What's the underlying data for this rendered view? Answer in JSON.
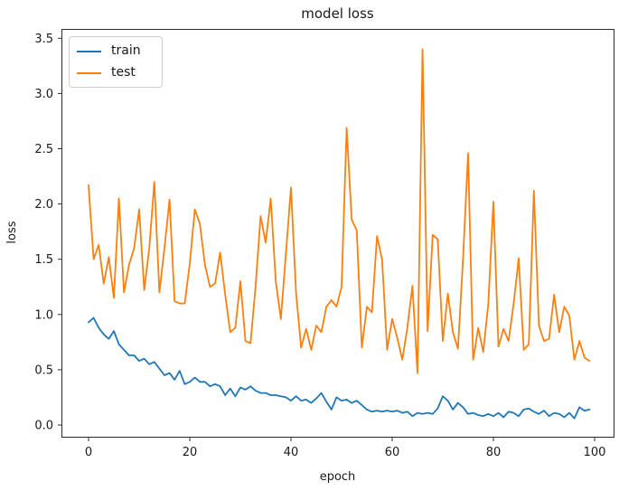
{
  "figure": {
    "background": "#ffffff",
    "axis_color": "#2b2b2b",
    "text_color": "#1a1a1a"
  },
  "chart_data": {
    "type": "line",
    "title": "model loss",
    "xlabel": "epoch",
    "ylabel": "loss",
    "grid": false,
    "legend_position": "upper left",
    "xlim": [
      -5.4,
      103.8
    ],
    "ylim": [
      -0.11,
      3.58
    ],
    "x_ticks": [
      0,
      20,
      40,
      60,
      80,
      100
    ],
    "y_ticks": [
      0.0,
      0.5,
      1.0,
      1.5,
      2.0,
      2.5,
      3.0,
      3.5
    ],
    "y_tick_labels": [
      "0.0",
      "0.5",
      "1.0",
      "1.5",
      "2.0",
      "2.5",
      "3.0",
      "3.5"
    ],
    "x": [
      0,
      1,
      2,
      3,
      4,
      5,
      6,
      7,
      8,
      9,
      10,
      11,
      12,
      13,
      14,
      15,
      16,
      17,
      18,
      19,
      20,
      21,
      22,
      23,
      24,
      25,
      26,
      27,
      28,
      29,
      30,
      31,
      32,
      33,
      34,
      35,
      36,
      37,
      38,
      39,
      40,
      41,
      42,
      43,
      44,
      45,
      46,
      47,
      48,
      49,
      50,
      51,
      52,
      53,
      54,
      55,
      56,
      57,
      58,
      59,
      60,
      61,
      62,
      63,
      64,
      65,
      66,
      67,
      68,
      69,
      70,
      71,
      72,
      73,
      74,
      75,
      76,
      77,
      78,
      79,
      80,
      81,
      82,
      83,
      84,
      85,
      86,
      87,
      88,
      89,
      90,
      91,
      92,
      93,
      94,
      95,
      96,
      97,
      98,
      99
    ],
    "series": [
      {
        "name": "train",
        "color": "#1f77b4",
        "values": [
          0.93,
          0.97,
          0.88,
          0.82,
          0.78,
          0.85,
          0.73,
          0.68,
          0.63,
          0.63,
          0.58,
          0.6,
          0.55,
          0.57,
          0.51,
          0.45,
          0.47,
          0.41,
          0.49,
          0.37,
          0.39,
          0.43,
          0.39,
          0.39,
          0.35,
          0.37,
          0.35,
          0.27,
          0.33,
          0.26,
          0.34,
          0.32,
          0.35,
          0.31,
          0.29,
          0.29,
          0.27,
          0.27,
          0.26,
          0.25,
          0.22,
          0.26,
          0.22,
          0.23,
          0.2,
          0.24,
          0.29,
          0.21,
          0.14,
          0.25,
          0.22,
          0.23,
          0.2,
          0.22,
          0.18,
          0.14,
          0.12,
          0.13,
          0.12,
          0.13,
          0.12,
          0.13,
          0.11,
          0.12,
          0.08,
          0.11,
          0.1,
          0.11,
          0.1,
          0.15,
          0.26,
          0.22,
          0.14,
          0.2,
          0.16,
          0.1,
          0.11,
          0.09,
          0.08,
          0.1,
          0.08,
          0.11,
          0.07,
          0.12,
          0.11,
          0.08,
          0.14,
          0.15,
          0.12,
          0.1,
          0.13,
          0.08,
          0.11,
          0.1,
          0.07,
          0.11,
          0.06,
          0.16,
          0.13,
          0.14
        ]
      },
      {
        "name": "test",
        "color": "#ff7f0e",
        "values": [
          2.17,
          1.5,
          1.63,
          1.28,
          1.52,
          1.15,
          2.05,
          1.2,
          1.45,
          1.6,
          1.95,
          1.22,
          1.6,
          2.2,
          1.2,
          1.6,
          2.04,
          1.12,
          1.1,
          1.1,
          1.46,
          1.95,
          1.82,
          1.45,
          1.25,
          1.28,
          1.56,
          1.18,
          0.84,
          0.88,
          1.3,
          0.76,
          0.74,
          1.25,
          1.89,
          1.65,
          2.05,
          1.3,
          0.96,
          1.55,
          2.15,
          1.2,
          0.7,
          0.87,
          0.68,
          0.9,
          0.84,
          1.07,
          1.13,
          1.07,
          1.25,
          2.69,
          1.86,
          1.76,
          0.7,
          1.07,
          1.02,
          1.71,
          1.5,
          0.68,
          0.96,
          0.79,
          0.59,
          0.88,
          1.26,
          0.47,
          3.4,
          0.85,
          1.72,
          1.68,
          0.76,
          1.19,
          0.84,
          0.69,
          1.5,
          2.46,
          0.59,
          0.88,
          0.66,
          1.1,
          2.02,
          0.71,
          0.87,
          0.76,
          1.1,
          1.51,
          0.68,
          0.73,
          2.12,
          0.9,
          0.76,
          0.78,
          1.18,
          0.84,
          1.07,
          0.99,
          0.59,
          0.76,
          0.61,
          0.58
        ]
      }
    ]
  }
}
